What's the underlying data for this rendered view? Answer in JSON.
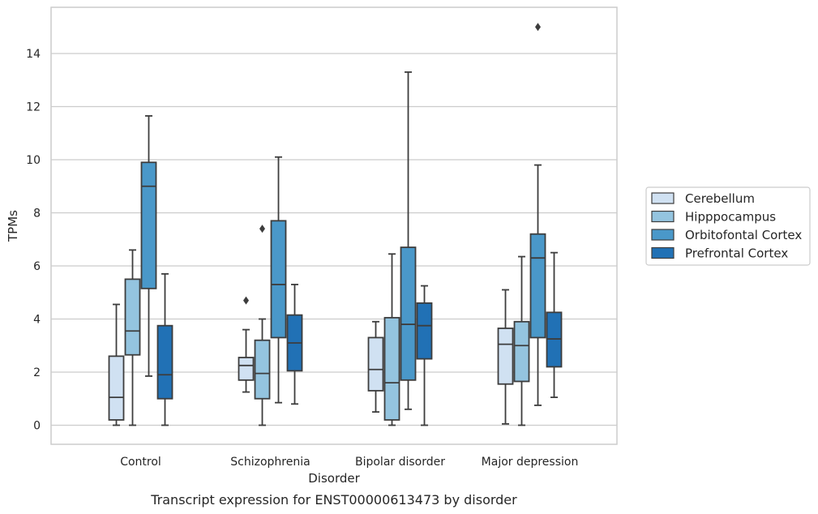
{
  "chart_data": {
    "type": "boxplot",
    "xlabel": "Disorder",
    "ylabel": "TPMs",
    "caption": "Transcript expression for ENST00000613473 by disorder",
    "ylim": [
      -0.7,
      15.7
    ],
    "yticks": [
      0,
      2,
      4,
      6,
      8,
      10,
      12,
      14
    ],
    "grid": "horizontal",
    "legend_position": "right",
    "categories": [
      "Control",
      "Schizophrenia",
      "Bipolar disorder",
      "Major depression"
    ],
    "series": [
      {
        "name": "Cerebellum",
        "color": "#d0e1f2",
        "boxes": [
          {
            "whislo": 0.0,
            "q1": 0.2,
            "med": 1.05,
            "q3": 2.6,
            "whishi": 4.55,
            "fliers": []
          },
          {
            "whislo": 1.25,
            "q1": 1.7,
            "med": 2.25,
            "q3": 2.55,
            "whishi": 3.6,
            "fliers": [
              4.7
            ]
          },
          {
            "whislo": 0.5,
            "q1": 1.3,
            "med": 2.1,
            "q3": 3.3,
            "whishi": 3.9,
            "fliers": []
          },
          {
            "whislo": 0.05,
            "q1": 1.55,
            "med": 3.05,
            "q3": 3.65,
            "whishi": 5.1,
            "fliers": []
          }
        ]
      },
      {
        "name": "Hipppocampus",
        "color": "#94c4df",
        "boxes": [
          {
            "whislo": 0.0,
            "q1": 2.65,
            "med": 3.55,
            "q3": 5.5,
            "whishi": 6.6,
            "fliers": []
          },
          {
            "whislo": 0.0,
            "q1": 1.0,
            "med": 1.95,
            "q3": 3.2,
            "whishi": 4.0,
            "fliers": [
              7.4
            ]
          },
          {
            "whislo": 0.0,
            "q1": 0.2,
            "med": 1.6,
            "q3": 4.05,
            "whishi": 6.45,
            "fliers": []
          },
          {
            "whislo": 0.0,
            "q1": 1.65,
            "med": 3.0,
            "q3": 3.9,
            "whishi": 6.35,
            "fliers": []
          }
        ]
      },
      {
        "name": "Orbitofontal Cortex",
        "color": "#4a98c9",
        "boxes": [
          {
            "whislo": 1.85,
            "q1": 5.15,
            "med": 9.0,
            "q3": 9.9,
            "whishi": 11.65,
            "fliers": []
          },
          {
            "whislo": 0.85,
            "q1": 3.3,
            "med": 5.3,
            "q3": 7.7,
            "whishi": 10.1,
            "fliers": []
          },
          {
            "whislo": 0.6,
            "q1": 1.7,
            "med": 3.8,
            "q3": 6.7,
            "whishi": 13.3,
            "fliers": []
          },
          {
            "whislo": 0.75,
            "q1": 3.3,
            "med": 6.3,
            "q3": 7.2,
            "whishi": 9.8,
            "fliers": [
              15.0
            ]
          }
        ]
      },
      {
        "name": "Prefrontal Cortex",
        "color": "#2171b5",
        "boxes": [
          {
            "whislo": 0.0,
            "q1": 1.0,
            "med": 1.9,
            "q3": 3.75,
            "whishi": 5.7,
            "fliers": []
          },
          {
            "whislo": 0.8,
            "q1": 2.05,
            "med": 3.1,
            "q3": 4.15,
            "whishi": 5.3,
            "fliers": []
          },
          {
            "whislo": 0.0,
            "q1": 2.5,
            "med": 3.75,
            "q3": 4.6,
            "whishi": 5.25,
            "fliers": []
          },
          {
            "whislo": 1.05,
            "q1": 2.2,
            "med": 3.25,
            "q3": 4.25,
            "whishi": 6.5,
            "fliers": []
          }
        ]
      }
    ]
  }
}
